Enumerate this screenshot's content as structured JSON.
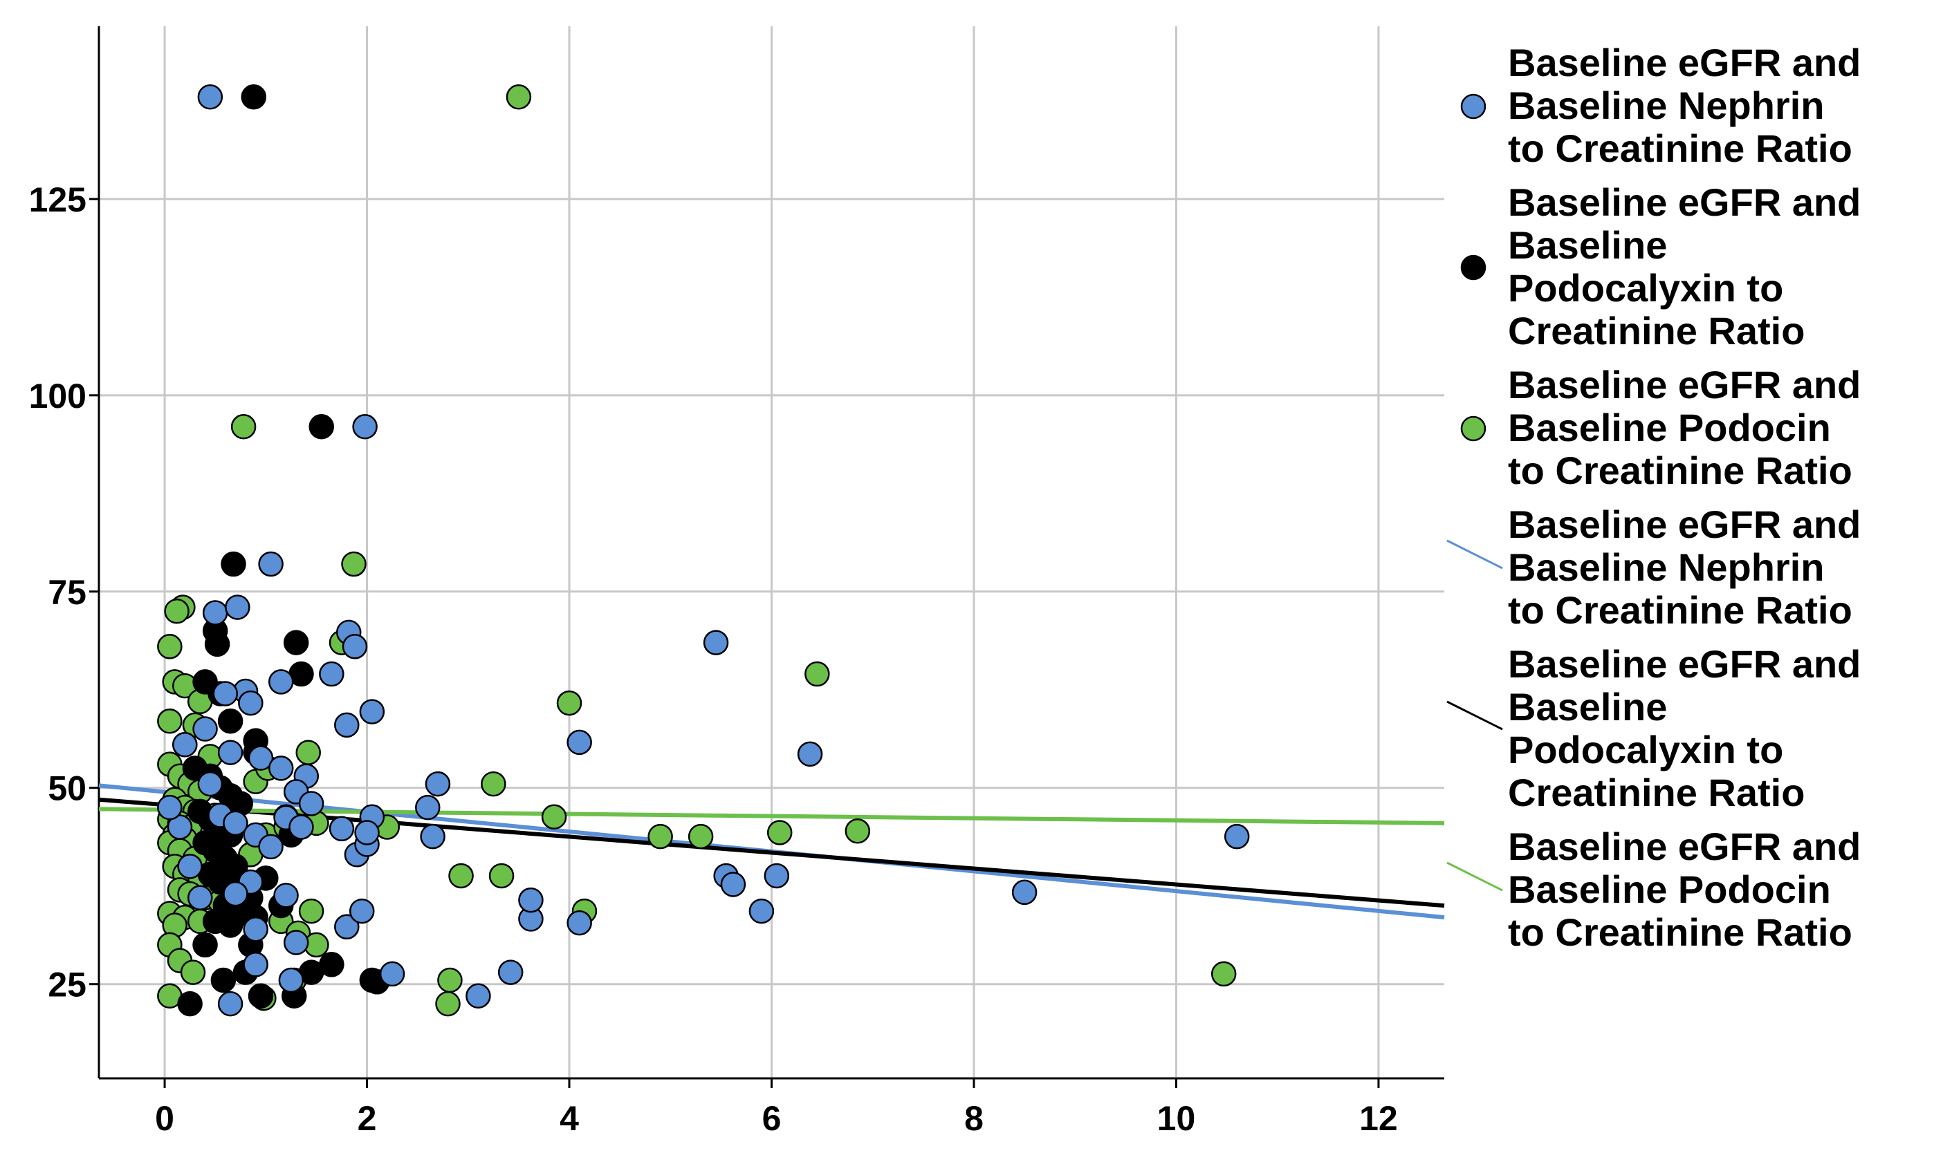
{
  "chart_data": {
    "type": "scatter",
    "xlim": [
      -0.65,
      12.65
    ],
    "ylim": [
      13,
      147
    ],
    "x_ticks": [
      0,
      2,
      4,
      6,
      8,
      10,
      12
    ],
    "y_ticks": [
      25,
      50,
      75,
      100,
      125
    ],
    "grid": true,
    "legend_position": "right",
    "series": [
      {
        "name": "Baseline eGFR and Baseline Nephrin to Creatinine Ratio",
        "color": "#5b8fd6",
        "points": [
          [
            0.45,
            138
          ],
          [
            1.98,
            96
          ],
          [
            1.05,
            78.5
          ],
          [
            0.5,
            72.3
          ],
          [
            0.72,
            73
          ],
          [
            1.82,
            69.8
          ],
          [
            1.88,
            68
          ],
          [
            0.8,
            62.3
          ],
          [
            0.85,
            60.8
          ],
          [
            1.15,
            63.5
          ],
          [
            1.65,
            64.5
          ],
          [
            2.05,
            59.7
          ],
          [
            1.8,
            58
          ],
          [
            0.65,
            54.5
          ],
          [
            0.95,
            53.8
          ],
          [
            1.15,
            52.5
          ],
          [
            1.4,
            51.5
          ],
          [
            0.45,
            50.5
          ],
          [
            1.3,
            49.5
          ],
          [
            1.45,
            48
          ],
          [
            0.55,
            46.5
          ],
          [
            0.7,
            45.5
          ],
          [
            0.9,
            44
          ],
          [
            1.05,
            42.5
          ],
          [
            1.2,
            46.2
          ],
          [
            1.35,
            45
          ],
          [
            1.75,
            44.8
          ],
          [
            1.9,
            41.5
          ],
          [
            2.0,
            42.8
          ],
          [
            2.05,
            46.3
          ],
          [
            2.0,
            44.3
          ],
          [
            2.6,
            47.5
          ],
          [
            2.65,
            43.8
          ],
          [
            2.7,
            50.5
          ],
          [
            0.85,
            38
          ],
          [
            1.2,
            36.3
          ],
          [
            0.9,
            32
          ],
          [
            1.8,
            32.3
          ],
          [
            1.95,
            34.3
          ],
          [
            0.7,
            36.5
          ],
          [
            1.3,
            30.3
          ],
          [
            0.9,
            27.5
          ],
          [
            2.25,
            26.3
          ],
          [
            1.25,
            25.5
          ],
          [
            0.65,
            22.5
          ],
          [
            3.1,
            23.5
          ],
          [
            3.42,
            26.5
          ],
          [
            3.62,
            33.3
          ],
          [
            3.62,
            35.7
          ],
          [
            4.1,
            32.8
          ],
          [
            4.1,
            55.8
          ],
          [
            5.45,
            68.5
          ],
          [
            5.55,
            38.8
          ],
          [
            5.62,
            37.7
          ],
          [
            5.9,
            34.3
          ],
          [
            6.05,
            38.8
          ],
          [
            6.38,
            54.3
          ],
          [
            8.5,
            36.7
          ],
          [
            10.6,
            43.8
          ],
          [
            0.15,
            45
          ],
          [
            0.25,
            40
          ],
          [
            0.35,
            36
          ],
          [
            0.2,
            55.5
          ],
          [
            0.05,
            47.5
          ],
          [
            0.4,
            57.5
          ],
          [
            0.6,
            62
          ]
        ],
        "trend_line": [
          [
            -0.65,
            50.3
          ],
          [
            12.65,
            33.5
          ]
        ]
      },
      {
        "name": "Baseline eGFR and Baseline Podocalyxin to Creatinine Ratio",
        "color": "#000000",
        "points": [
          [
            0.88,
            138
          ],
          [
            1.55,
            96
          ],
          [
            0.68,
            78.5
          ],
          [
            0.5,
            70
          ],
          [
            0.52,
            68.3
          ],
          [
            1.3,
            68.5
          ],
          [
            1.35,
            64.5
          ],
          [
            0.4,
            63.5
          ],
          [
            0.55,
            62
          ],
          [
            0.65,
            58.5
          ],
          [
            0.9,
            56
          ],
          [
            0.9,
            54.5
          ],
          [
            0.3,
            52.5
          ],
          [
            0.45,
            51.5
          ],
          [
            0.55,
            50
          ],
          [
            0.65,
            49
          ],
          [
            0.75,
            48
          ],
          [
            0.35,
            47
          ],
          [
            0.45,
            46
          ],
          [
            0.55,
            45
          ],
          [
            0.65,
            44
          ],
          [
            0.4,
            43
          ],
          [
            0.5,
            42
          ],
          [
            0.6,
            41
          ],
          [
            0.7,
            40
          ],
          [
            0.45,
            39
          ],
          [
            0.55,
            38
          ],
          [
            0.7,
            37
          ],
          [
            0.85,
            36
          ],
          [
            0.6,
            35
          ],
          [
            0.75,
            34
          ],
          [
            0.9,
            33.5
          ],
          [
            0.5,
            33
          ],
          [
            0.65,
            32.5
          ],
          [
            1.15,
            35
          ],
          [
            1.25,
            44
          ],
          [
            0.85,
            30
          ],
          [
            1.0,
            38.5
          ],
          [
            0.4,
            30
          ],
          [
            1.45,
            26.5
          ],
          [
            1.65,
            27.5
          ],
          [
            0.58,
            25.5
          ],
          [
            0.8,
            26.5
          ],
          [
            0.95,
            23.5
          ],
          [
            1.28,
            23.5
          ],
          [
            2.05,
            25.5
          ],
          [
            2.1,
            25.3
          ],
          [
            0.25,
            22.5
          ]
        ],
        "trend_line": [
          [
            -0.65,
            48.5
          ],
          [
            12.65,
            35
          ]
        ]
      },
      {
        "name": "Baseline eGFR and Baseline Podocin to Creatinine Ratio",
        "color": "#6cc04a",
        "points": [
          [
            3.5,
            138
          ],
          [
            0.78,
            96
          ],
          [
            1.87,
            78.5
          ],
          [
            0.18,
            73
          ],
          [
            0.12,
            72.5
          ],
          [
            1.75,
            68.5
          ],
          [
            0.05,
            68
          ],
          [
            0.1,
            63.5
          ],
          [
            0.2,
            63
          ],
          [
            0.35,
            61
          ],
          [
            0.05,
            58.5
          ],
          [
            0.3,
            58
          ],
          [
            0.2,
            55.5
          ],
          [
            0.45,
            54
          ],
          [
            1.42,
            54.5
          ],
          [
            0.05,
            53
          ],
          [
            0.15,
            51.5
          ],
          [
            0.25,
            50.5
          ],
          [
            0.35,
            49.5
          ],
          [
            0.9,
            50.8
          ],
          [
            1.02,
            52.5
          ],
          [
            0.1,
            48.5
          ],
          [
            0.2,
            47.5
          ],
          [
            0.3,
            47
          ],
          [
            0.05,
            46
          ],
          [
            0.15,
            45.5
          ],
          [
            0.25,
            45
          ],
          [
            0.5,
            46.5
          ],
          [
            0.7,
            47.5
          ],
          [
            1.2,
            46.3
          ],
          [
            1.5,
            45.5
          ],
          [
            0.1,
            44
          ],
          [
            0.2,
            43.5
          ],
          [
            0.65,
            44.5
          ],
          [
            1.0,
            44
          ],
          [
            1.2,
            45
          ],
          [
            0.05,
            43
          ],
          [
            0.15,
            42
          ],
          [
            0.3,
            41
          ],
          [
            0.85,
            41.5
          ],
          [
            0.1,
            40
          ],
          [
            0.2,
            39
          ],
          [
            0.35,
            38.5
          ],
          [
            0.5,
            38
          ],
          [
            0.15,
            37
          ],
          [
            0.25,
            36.5
          ],
          [
            0.4,
            36
          ],
          [
            0.55,
            35.5
          ],
          [
            0.05,
            34
          ],
          [
            0.2,
            33.5
          ],
          [
            0.35,
            33
          ],
          [
            1.15,
            33
          ],
          [
            1.45,
            34.3
          ],
          [
            0.1,
            32.5
          ],
          [
            1.32,
            31.5
          ],
          [
            0.05,
            30
          ],
          [
            1.5,
            30
          ],
          [
            0.15,
            28
          ],
          [
            0.28,
            26.5
          ],
          [
            1.28,
            25.5
          ],
          [
            0.05,
            23.5
          ],
          [
            0.98,
            23.2
          ],
          [
            2.82,
            25.5
          ],
          [
            2.8,
            22.5
          ],
          [
            2.2,
            45
          ],
          [
            2.93,
            38.8
          ],
          [
            3.25,
            50.5
          ],
          [
            3.33,
            38.8
          ],
          [
            3.85,
            46.3
          ],
          [
            4.0,
            60.8
          ],
          [
            4.15,
            34.3
          ],
          [
            4.9,
            43.8
          ],
          [
            5.3,
            43.8
          ],
          [
            6.08,
            44.3
          ],
          [
            6.45,
            64.5
          ],
          [
            6.85,
            44.5
          ],
          [
            10.47,
            26.3
          ]
        ],
        "trend_line": [
          [
            -0.65,
            47.3
          ],
          [
            12.65,
            45.5
          ]
        ]
      }
    ]
  },
  "legend": [
    {
      "kind": "marker",
      "color": "#5b8fd6",
      "lines": [
        "Baseline eGFR and",
        "Baseline Nephrin",
        "to Creatinine Ratio"
      ]
    },
    {
      "kind": "marker",
      "color": "#000000",
      "lines": [
        "Baseline eGFR and",
        "Baseline",
        "Podocalyxin to",
        "Creatinine Ratio"
      ]
    },
    {
      "kind": "marker",
      "color": "#6cc04a",
      "lines": [
        "Baseline eGFR and",
        "Baseline Podocin",
        "to Creatinine Ratio"
      ]
    },
    {
      "kind": "line",
      "color": "#5b8fd6",
      "lines": [
        "Baseline eGFR and",
        "Baseline Nephrin",
        "to Creatinine Ratio"
      ]
    },
    {
      "kind": "line",
      "color": "#000000",
      "lines": [
        "Baseline eGFR and",
        "Baseline",
        "Podocalyxin to",
        "Creatinine Ratio"
      ]
    },
    {
      "kind": "line",
      "color": "#6cc04a",
      "lines": [
        "Baseline eGFR and",
        "Baseline Podocin",
        "to Creatinine Ratio"
      ]
    }
  ]
}
